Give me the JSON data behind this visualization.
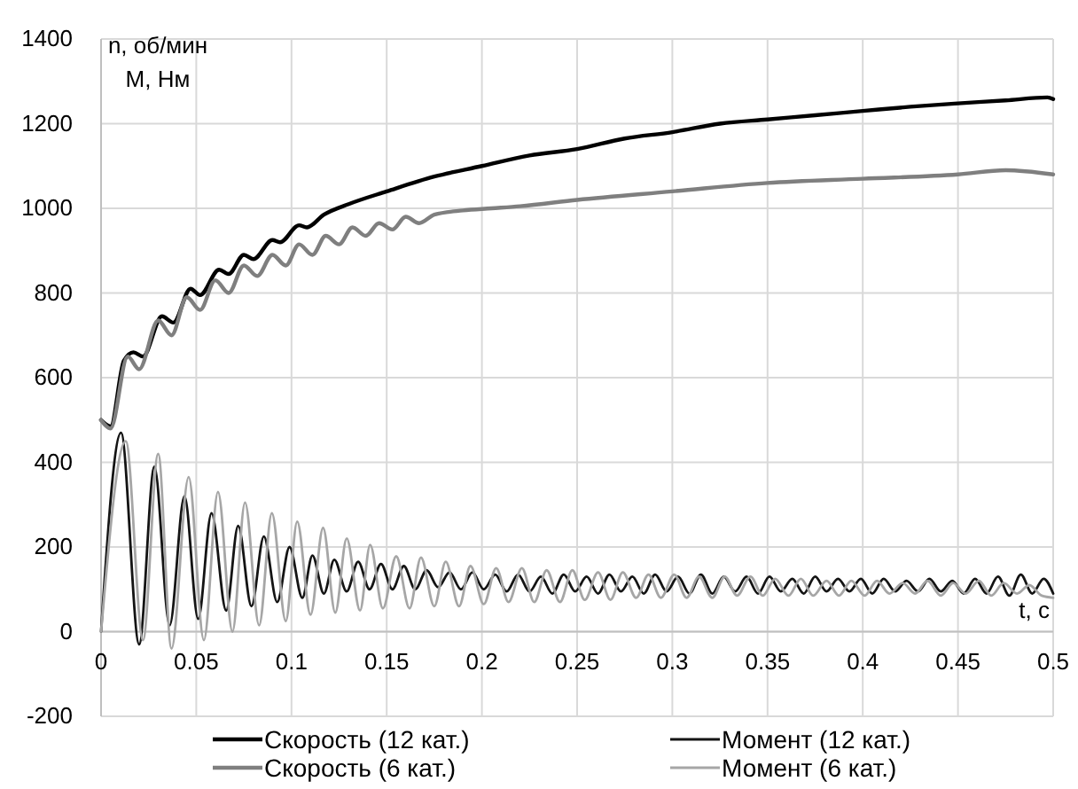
{
  "chart_data": {
    "type": "line",
    "xlabel": "t, с",
    "ylabel": "n, об/мин\nM, Нм",
    "xlim": [
      0,
      0.5
    ],
    "xticks": [
      0,
      0.05,
      0.1,
      0.15,
      0.2,
      0.25,
      0.3,
      0.35,
      0.4,
      0.45,
      0.5
    ],
    "ylim": [
      -200,
      1400
    ],
    "yticks": [
      -200,
      0,
      200,
      400,
      600,
      800,
      1000,
      1200,
      1400
    ],
    "grid": true,
    "legend": "bottom",
    "marker": "none",
    "line_style": "solid",
    "series": [
      {
        "name": "Скорость (12 кат.)",
        "color": "#000000",
        "x": [
          0,
          0.005,
          0.012,
          0.017,
          0.022,
          0.032,
          0.038,
          0.047,
          0.052,
          0.062,
          0.067,
          0.075,
          0.08,
          0.09,
          0.094,
          0.104,
          0.108,
          0.117,
          0.13,
          0.15,
          0.175,
          0.2,
          0.225,
          0.25,
          0.275,
          0.3,
          0.325,
          0.35,
          0.375,
          0.4,
          0.425,
          0.45,
          0.475,
          0.497,
          0.5
        ],
        "values": [
          500,
          485,
          640,
          660,
          650,
          745,
          730,
          810,
          795,
          855,
          845,
          890,
          880,
          925,
          920,
          960,
          955,
          985,
          1010,
          1040,
          1075,
          1100,
          1125,
          1140,
          1165,
          1180,
          1200,
          1210,
          1220,
          1230,
          1240,
          1248,
          1255,
          1262,
          1258
        ]
      },
      {
        "name": "Момент (12 кат.)",
        "color": "#141414",
        "x": [
          0,
          0.0105,
          0.02,
          0.028,
          0.036,
          0.0438,
          0.051,
          0.058,
          0.0657,
          0.072,
          0.079,
          0.0855,
          0.0925,
          0.099,
          0.1057,
          0.111,
          0.117,
          0.1225,
          0.129,
          0.135,
          0.141,
          0.147,
          0.153,
          0.159,
          0.165,
          0.171,
          0.177,
          0.183,
          0.189,
          0.195,
          0.201,
          0.207,
          0.213,
          0.219,
          0.225,
          0.231,
          0.237,
          0.243,
          0.249,
          0.255,
          0.261,
          0.267,
          0.273,
          0.279,
          0.285,
          0.291,
          0.297,
          0.303,
          0.309,
          0.315,
          0.321,
          0.327,
          0.333,
          0.339,
          0.345,
          0.351,
          0.357,
          0.363,
          0.369,
          0.375,
          0.381,
          0.387,
          0.393,
          0.399,
          0.405,
          0.411,
          0.417,
          0.423,
          0.429,
          0.435,
          0.441,
          0.447,
          0.453,
          0.459,
          0.465,
          0.471,
          0.477,
          0.483,
          0.489,
          0.495,
          0.5
        ],
        "values": [
          0,
          470,
          -30,
          390,
          15,
          320,
          30,
          280,
          50,
          250,
          60,
          225,
          70,
          200,
          80,
          180,
          90,
          170,
          95,
          165,
          100,
          160,
          100,
          155,
          100,
          145,
          105,
          140,
          100,
          140,
          100,
          135,
          95,
          135,
          95,
          130,
          90,
          135,
          95,
          130,
          90,
          135,
          95,
          130,
          90,
          135,
          95,
          130,
          90,
          135,
          90,
          130,
          95,
          130,
          90,
          130,
          95,
          125,
          90,
          130,
          95,
          125,
          95,
          125,
          90,
          125,
          95,
          120,
          95,
          125,
          95,
          120,
          90,
          125,
          90,
          130,
          85,
          135,
          90,
          125,
          90
        ]
      },
      {
        "name": "Скорость (6 кат.)",
        "color": "#7f7f7f",
        "x": [
          0,
          0.005,
          0.014,
          0.02,
          0.03,
          0.037,
          0.045,
          0.052,
          0.06,
          0.067,
          0.075,
          0.082,
          0.09,
          0.097,
          0.104,
          0.111,
          0.118,
          0.125,
          0.132,
          0.139,
          0.146,
          0.153,
          0.16,
          0.167,
          0.175,
          0.19,
          0.205,
          0.22,
          0.25,
          0.3,
          0.35,
          0.4,
          0.45,
          0.475,
          0.5
        ],
        "values": [
          500,
          480,
          650,
          620,
          735,
          700,
          790,
          760,
          830,
          800,
          865,
          840,
          890,
          865,
          915,
          890,
          935,
          915,
          955,
          935,
          965,
          950,
          980,
          965,
          985,
          995,
          1000,
          1005,
          1020,
          1040,
          1060,
          1070,
          1080,
          1090,
          1080
        ]
      },
      {
        "name": "Момент (6 кат.)",
        "color": "#a6a6a6",
        "x": [
          0,
          0.013,
          0.022,
          0.03,
          0.037,
          0.046,
          0.054,
          0.0614,
          0.069,
          0.0756,
          0.083,
          0.0897,
          0.097,
          0.103,
          0.11,
          0.1166,
          0.123,
          0.129,
          0.136,
          0.1413,
          0.148,
          0.155,
          0.162,
          0.168,
          0.175,
          0.181,
          0.188,
          0.194,
          0.201,
          0.2075,
          0.214,
          0.221,
          0.2275,
          0.234,
          0.241,
          0.2475,
          0.254,
          0.261,
          0.2675,
          0.274,
          0.281,
          0.2875,
          0.294,
          0.301,
          0.3075,
          0.314,
          0.321,
          0.3275,
          0.334,
          0.341,
          0.3475,
          0.354,
          0.361,
          0.3675,
          0.374,
          0.381,
          0.3875,
          0.394,
          0.401,
          0.4075,
          0.414,
          0.421,
          0.4275,
          0.434,
          0.441,
          0.4475,
          0.454,
          0.461,
          0.4675,
          0.474,
          0.481,
          0.4875,
          0.494,
          0.5
        ],
        "values": [
          0,
          450,
          -20,
          420,
          -40,
          365,
          -20,
          330,
          0,
          305,
          15,
          280,
          25,
          260,
          40,
          245,
          45,
          220,
          50,
          205,
          55,
          178,
          55,
          175,
          60,
          165,
          60,
          155,
          65,
          150,
          70,
          150,
          70,
          145,
          70,
          145,
          75,
          140,
          75,
          140,
          80,
          135,
          80,
          135,
          80,
          130,
          80,
          130,
          85,
          130,
          85,
          125,
          85,
          125,
          85,
          120,
          85,
          120,
          85,
          120,
          90,
          115,
          90,
          120,
          85,
          115,
          90,
          120,
          85,
          115,
          90,
          110,
          85,
          80
        ]
      }
    ]
  }
}
